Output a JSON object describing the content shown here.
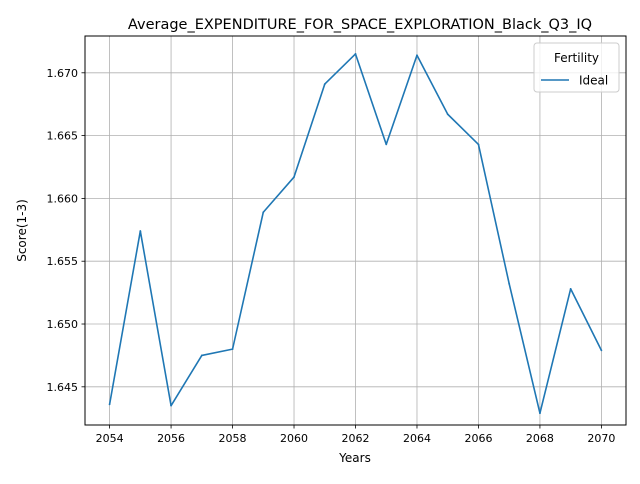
{
  "chart_data": {
    "type": "line",
    "title": "Average_EXPENDITURE_FOR_SPACE_EXPLORATION_Black_Q3_IQ",
    "xlabel": "Years",
    "ylabel": "Score(1-3)",
    "x": [
      2054,
      2055,
      2056,
      2057,
      2058,
      2059,
      2060,
      2061,
      2062,
      2063,
      2064,
      2065,
      2066,
      2067,
      2068,
      2069,
      2070
    ],
    "series": [
      {
        "name": "Ideal",
        "color": "#1f77b4",
        "values": [
          1.6436,
          1.6574,
          1.6435,
          1.6475,
          1.648,
          1.6589,
          1.6617,
          1.6691,
          1.6715,
          1.6643,
          1.6714,
          1.6667,
          1.6643,
          1.6532,
          1.6429,
          1.6528,
          1.6479
        ]
      }
    ],
    "xticks": [
      "2054",
      "2056",
      "2058",
      "2060",
      "2062",
      "2064",
      "2066",
      "2068",
      "2070"
    ],
    "yticks": [
      "1.645",
      "1.650",
      "1.655",
      "1.660",
      "1.665",
      "1.670"
    ],
    "xlim": [
      2053.2,
      2070.8
    ],
    "ylim": [
      1.64196,
      1.67293
    ],
    "grid": true,
    "legend": {
      "title": "Fertility",
      "position": "top-right"
    }
  }
}
